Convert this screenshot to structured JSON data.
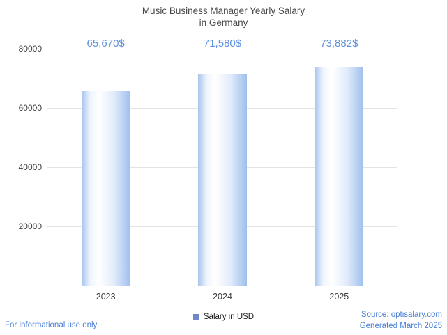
{
  "header": {
    "title_line1": "Music Business Manager Yearly Salary",
    "title_line2": "in Germany"
  },
  "chart_data": {
    "type": "bar",
    "title": "Music Business Manager Yearly Salary in Germany",
    "categories": [
      "2023",
      "2024",
      "2025"
    ],
    "values": [
      65670,
      71580,
      73882
    ],
    "value_labels": [
      "65,670$",
      "71,580$",
      "73,882$"
    ],
    "xlabel": "",
    "ylabel": "",
    "ylim": [
      0,
      80000
    ],
    "yticks": [
      20000,
      40000,
      60000,
      80000
    ],
    "grid": true,
    "legend": "Salary in USD",
    "legend_position": "bottom"
  },
  "colors": {
    "value_label": "#5e90dd",
    "bar_edge": "#9fbfec",
    "legend_square": "#6d87c8",
    "footer_text": "#4b80d6",
    "gridline": "#e3e3e3",
    "axis_line": "#b3b3b3",
    "title_text": "#4a4a4a"
  },
  "footer": {
    "left": "For informational use only",
    "source": "Source: optisalary.com",
    "generated": "Generated March 2025"
  }
}
